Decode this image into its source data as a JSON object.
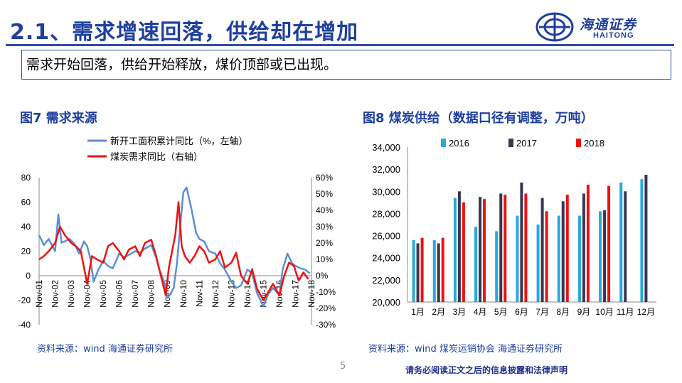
{
  "header": {
    "title": "2.1、需求增速回落，供给却在增加",
    "logo_cn": "海通证券",
    "logo_en": "HAITONG"
  },
  "summary": "需求开始回落，供给开始释放，煤价顶部或已出现。",
  "left_figure": {
    "title": "图7  需求来源",
    "source": "资料来源：wind  海通证券研究所"
  },
  "right_figure": {
    "title": "图8  煤炭供给（数据口径有调整，万吨）",
    "source": "资料来源：wind  煤炭运销协会  海通证券研究所"
  },
  "page_number": "5",
  "disclaimer": "请务必阅读正文之后的信息披露和法律声明",
  "colors": {
    "brand": "#1f3f9f",
    "series_blue": "#5b8fd6",
    "series_red": "#ee1111",
    "y2016": "#29a8e0",
    "y2017": "#3a3550",
    "y2018": "#ee1111"
  },
  "chart_data": [
    {
      "type": "line",
      "legend": [
        "新开工面积累计同比（%，左轴）",
        "煤炭需求同比（右轴）"
      ],
      "x_ticks": [
        "Nov-01",
        "Nov-02",
        "Nov-03",
        "Nov-04",
        "Nov-05",
        "Nov-06",
        "Nov-07",
        "Nov-08",
        "Nov-09",
        "Nov-10",
        "Nov-11",
        "Nov-12",
        "Nov-13",
        "Nov-14",
        "Nov-15",
        "Nov-16",
        "Nov-17",
        "Nov-18"
      ],
      "y_left_ticks": [
        "80",
        "60",
        "40",
        "20",
        "0",
        "-20",
        "-40"
      ],
      "y_left_lim": [
        -40,
        80
      ],
      "y_right_ticks": [
        "60%",
        "50%",
        "40%",
        "30%",
        "20%",
        "10%",
        "0%",
        "-10%",
        "-20%",
        "-30%"
      ],
      "y_right_lim": [
        -30,
        60
      ],
      "series": [
        {
          "name": "新开工面积累计同比（%，左轴）",
          "axis": "left",
          "x": [
            2001.0,
            2001.3,
            2001.6,
            2002.0,
            2002.2,
            2002.4,
            2002.6,
            2002.9,
            2003.2,
            2003.5,
            2003.8,
            2004.0,
            2004.2,
            2004.4,
            2004.7,
            2005.0,
            2005.3,
            2005.6,
            2006.0,
            2006.3,
            2006.6,
            2007.0,
            2007.3,
            2007.6,
            2008.0,
            2008.3,
            2008.5,
            2008.8,
            2009.0,
            2009.2,
            2009.4,
            2009.6,
            2009.8,
            2010.0,
            2010.2,
            2010.5,
            2010.8,
            2011.0,
            2011.3,
            2011.6,
            2012.0,
            2012.3,
            2012.6,
            2013.0,
            2013.3,
            2013.6,
            2014.0,
            2014.3,
            2014.6,
            2015.0,
            2015.3,
            2015.6,
            2016.0,
            2016.2,
            2016.5,
            2016.8,
            2017.0,
            2017.3,
            2017.6,
            2017.9
          ],
          "values": [
            33,
            25,
            30,
            20,
            50,
            27,
            28,
            30,
            26,
            18,
            28,
            24,
            14,
            -5,
            5,
            12,
            8,
            6,
            18,
            15,
            17,
            20,
            19,
            22,
            25,
            15,
            5,
            -5,
            -18,
            -15,
            -10,
            10,
            40,
            68,
            72,
            55,
            35,
            30,
            28,
            20,
            18,
            10,
            5,
            -5,
            -10,
            -8,
            5,
            2,
            -14,
            -25,
            -15,
            -10,
            -16,
            5,
            18,
            10,
            8,
            6,
            5,
            2
          ]
        },
        {
          "name": "煤炭需求同比（右轴）",
          "axis": "right",
          "x": [
            2001.0,
            2001.3,
            2001.6,
            2002.0,
            2002.3,
            2002.6,
            2003.0,
            2003.3,
            2003.6,
            2004.0,
            2004.3,
            2004.6,
            2005.0,
            2005.3,
            2005.6,
            2006.0,
            2006.3,
            2006.6,
            2007.0,
            2007.3,
            2007.6,
            2008.0,
            2008.3,
            2008.6,
            2008.9,
            2009.1,
            2009.3,
            2009.5,
            2009.7,
            2009.9,
            2010.1,
            2010.4,
            2010.7,
            2011.0,
            2011.3,
            2011.6,
            2012.0,
            2012.3,
            2012.6,
            2013.0,
            2013.3,
            2013.6,
            2014.0,
            2014.3,
            2014.6,
            2015.0,
            2015.3,
            2015.6,
            2016.0,
            2016.3,
            2016.6,
            2016.9,
            2017.2,
            2017.5,
            2017.8
          ],
          "values": [
            10,
            12,
            15,
            20,
            30,
            25,
            20,
            18,
            15,
            -5,
            12,
            10,
            8,
            18,
            20,
            15,
            10,
            16,
            18,
            12,
            20,
            22,
            12,
            0,
            -12,
            5,
            15,
            25,
            45,
            18,
            12,
            8,
            12,
            18,
            15,
            8,
            10,
            15,
            5,
            8,
            14,
            0,
            -5,
            4,
            -8,
            -15,
            -10,
            -5,
            -12,
            0,
            8,
            6,
            -3,
            2,
            -2
          ]
        }
      ]
    },
    {
      "type": "bar",
      "categories": [
        "1月",
        "2月",
        "3月",
        "4月",
        "5月",
        "6月",
        "7月",
        "8月",
        "9月",
        "10月",
        "11月",
        "12月"
      ],
      "y_ticks": [
        "34,000",
        "32,000",
        "30,000",
        "28,000",
        "26,000",
        "24,000",
        "22,000",
        "20,000"
      ],
      "ylim": [
        20000,
        34000
      ],
      "series": [
        {
          "name": "2016",
          "values": [
            25600,
            25600,
            29400,
            26800,
            26400,
            27800,
            27000,
            27800,
            27800,
            28200,
            30800,
            31100
          ]
        },
        {
          "name": "2017",
          "values": [
            25300,
            25300,
            30000,
            29500,
            29800,
            30800,
            29400,
            29100,
            29800,
            28300,
            30000,
            31500
          ]
        },
        {
          "name": "2018",
          "values": [
            25800,
            25800,
            29000,
            29300,
            29700,
            29800,
            28200,
            29700,
            30600,
            30500,
            null,
            null
          ]
        }
      ]
    }
  ]
}
